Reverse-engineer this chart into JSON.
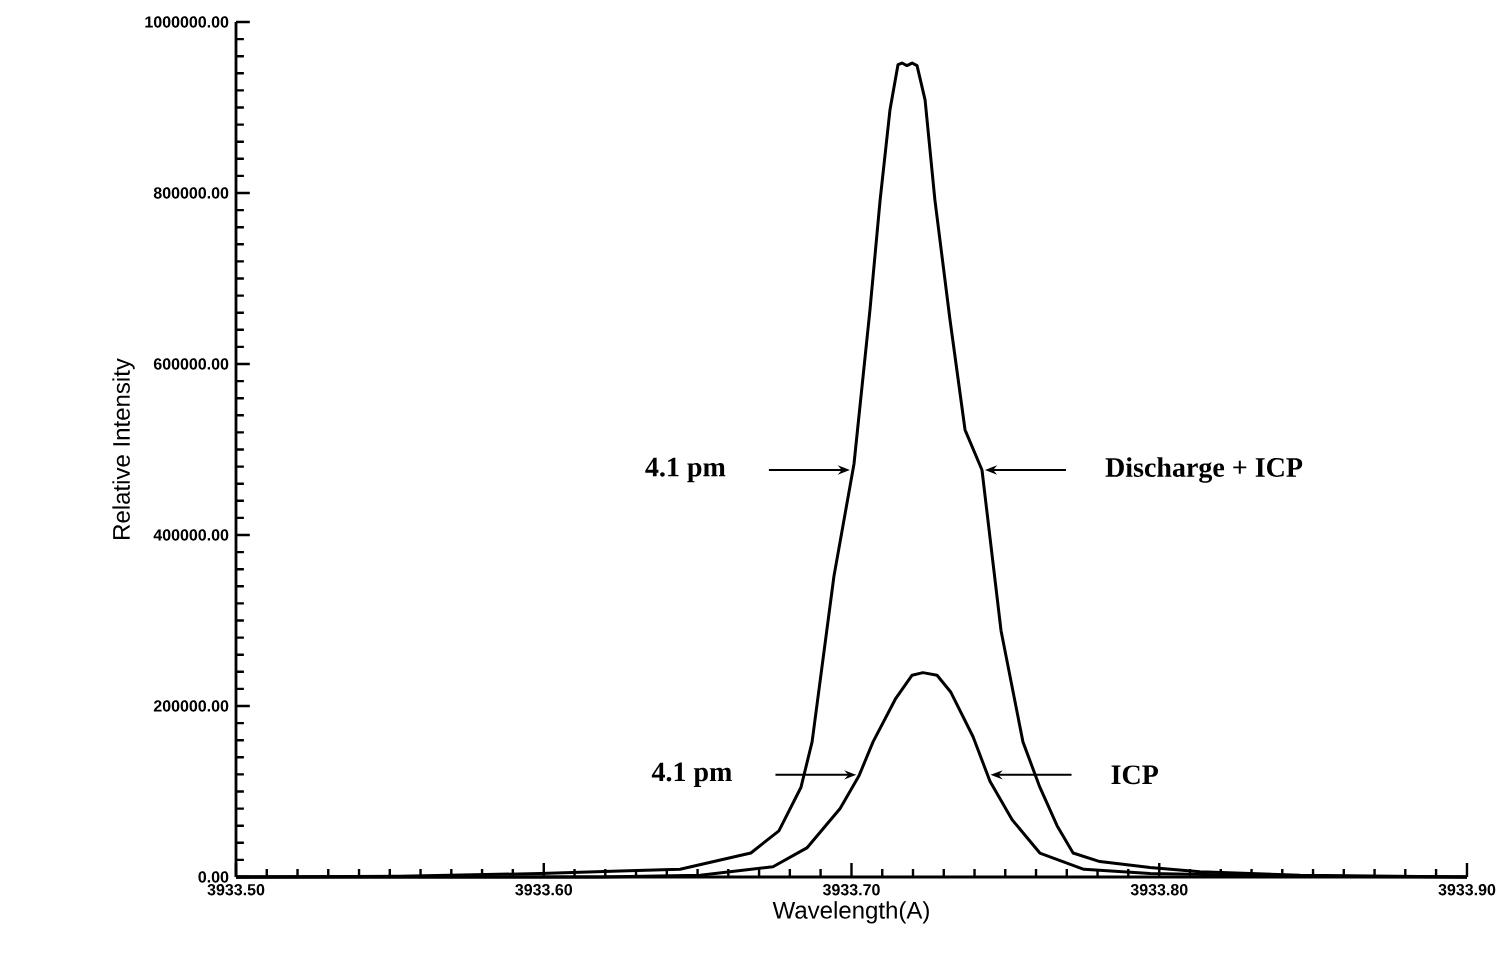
{
  "chart_data": {
    "type": "line",
    "xlabel": "Wavelength(A)",
    "ylabel": "Relative Intensity",
    "xlim": [
      3933.5,
      3933.9
    ],
    "xticks": [
      {
        "value": 3933.5,
        "label": "3933.50"
      },
      {
        "value": 3933.6,
        "label": "3933.60"
      },
      {
        "value": 3933.7,
        "label": "3933.70"
      },
      {
        "value": 3933.8,
        "label": "3933.80"
      },
      {
        "value": 3933.9,
        "label": "3933.90"
      }
    ],
    "ylim": [
      0,
      1000000
    ],
    "yticks": [
      {
        "value": 0,
        "label": "0.00"
      },
      {
        "value": 200000,
        "label": "200000.00"
      },
      {
        "value": 400000,
        "label": "400000.00"
      },
      {
        "value": 600000,
        "label": "600000.00"
      },
      {
        "value": 800000,
        "label": "800000.00"
      },
      {
        "value": 1000000,
        "label": "1000000.00"
      }
    ],
    "series": [
      {
        "color": "#000000",
        "x": [
          3933.5,
          3933.5533,
          3933.5988,
          3933.6248,
          3933.6443,
          3933.6673,
          3933.6764,
          3933.6836,
          3933.6872,
          3933.6943,
          3933.7008,
          3933.706,
          3933.7093,
          3933.7125,
          3933.7151,
          3933.7164,
          3933.718,
          3933.7197,
          3933.7213,
          3933.7239,
          3933.7271,
          3933.732,
          3933.7369,
          3933.7424,
          3933.7486,
          3933.7557,
          3933.7612,
          3933.7668,
          3933.772,
          3933.7807,
          3933.797,
          3933.8132,
          3933.8457,
          3933.9
        ],
        "values": [
          0,
          1000,
          4000,
          7000,
          9000,
          28000,
          54000,
          105000,
          158000,
          352000,
          483000,
          663000,
          792000,
          897000,
          950000,
          952000,
          949000,
          952000,
          949000,
          909000,
          792000,
          652000,
          523000,
          476000,
          288000,
          158000,
          105000,
          60000,
          28000,
          18000,
          11000,
          6000,
          2000,
          0
        ]
      },
      {
        "color": "#000000",
        "x": [
          3933.5,
          3933.6183,
          3933.6508,
          3933.6745,
          3933.6855,
          3933.6963,
          3933.7024,
          3933.707,
          3933.7144,
          3933.7197,
          3933.7232,
          3933.7278,
          3933.7323,
          3933.7395,
          3933.745,
          3933.7522,
          3933.7612,
          3933.7755,
          3933.797,
          3933.8457,
          3933.9
        ],
        "values": [
          0,
          0,
          2000,
          12000,
          34000,
          80000,
          118000,
          158000,
          209000,
          236000,
          239000,
          236000,
          216000,
          164000,
          112000,
          67000,
          28000,
          9000,
          4000,
          1000,
          0
        ]
      }
    ],
    "annotations": [
      "4.1 pm",
      "Discharge + ICP",
      "4.1 pm",
      "ICP"
    ]
  }
}
